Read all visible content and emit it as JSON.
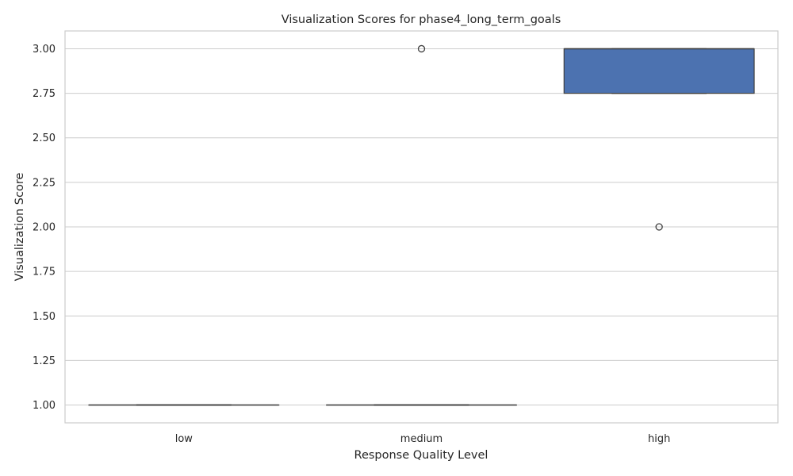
{
  "chart_data": {
    "type": "box",
    "title": "Visualization Scores for phase4_long_term_goals",
    "xlabel": "Response Quality Level",
    "ylabel": "Visualization Score",
    "categories": [
      "low",
      "medium",
      "high"
    ],
    "ylim": [
      0.9,
      3.1
    ],
    "yticks": [
      1.0,
      1.25,
      1.5,
      1.75,
      2.0,
      2.25,
      2.5,
      2.75,
      3.0
    ],
    "ytick_labels": [
      "1.00",
      "1.25",
      "1.50",
      "1.75",
      "2.00",
      "2.25",
      "2.50",
      "2.75",
      "3.00"
    ],
    "grid": true,
    "box_color": "#4c72b0",
    "boxes": [
      {
        "category": "low",
        "whisker_low": 1.0,
        "q1": 1.0,
        "median": 1.0,
        "q3": 1.0,
        "whisker_high": 1.0,
        "outliers": []
      },
      {
        "category": "medium",
        "whisker_low": 1.0,
        "q1": 1.0,
        "median": 1.0,
        "q3": 1.0,
        "whisker_high": 1.0,
        "outliers": [
          3.0
        ]
      },
      {
        "category": "high",
        "whisker_low": 2.75,
        "q1": 2.75,
        "median": 3.0,
        "q3": 3.0,
        "whisker_high": 3.0,
        "outliers": [
          2.0
        ]
      }
    ]
  }
}
